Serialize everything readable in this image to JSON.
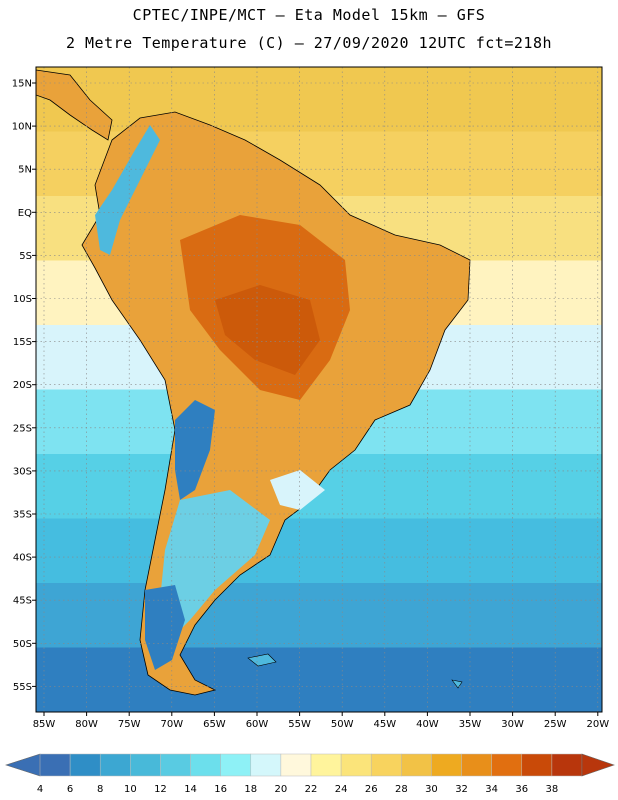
{
  "header": {
    "line1": "CPTEC/INPE/MCT –  Eta Model 15km – GFS",
    "line2": "2 Metre Temperature (C) – 27/09/2020 12UTC fct=218h"
  },
  "map": {
    "lat_labels": [
      "15N",
      "10N",
      "5N",
      "EQ",
      "5S",
      "10S",
      "15S",
      "20S",
      "25S",
      "30S",
      "35S",
      "40S",
      "45S",
      "50S",
      "55S"
    ],
    "lon_labels": [
      "85W",
      "80W",
      "75W",
      "70W",
      "65W",
      "60W",
      "55W",
      "50W",
      "45W",
      "40W",
      "35W",
      "30W",
      "25W",
      "20W"
    ],
    "ocean_bands": [
      {
        "color": "#f0c850"
      },
      {
        "color": "#f5d060"
      },
      {
        "color": "#f8e080"
      },
      {
        "color": "#fff3c0"
      },
      {
        "color": "#d8f4fb"
      },
      {
        "color": "#7ee3f1"
      },
      {
        "color": "#56d0e6"
      },
      {
        "color": "#45bde0"
      },
      {
        "color": "#3ea5d4"
      },
      {
        "color": "#2f7fc0"
      }
    ]
  },
  "legend": {
    "values": [
      "4",
      "6",
      "8",
      "10",
      "12",
      "14",
      "16",
      "18",
      "20",
      "22",
      "24",
      "26",
      "28",
      "30",
      "32",
      "34",
      "36",
      "38"
    ],
    "colors": [
      "#3a6fb4",
      "#2f8ec6",
      "#3ca7d2",
      "#48b9d9",
      "#59cbe2",
      "#6cdfec",
      "#8ef1f6",
      "#d4f7fb",
      "#fff8dc",
      "#fff49c",
      "#fbe47a",
      "#f8d35e",
      "#f2c246",
      "#eeaa20",
      "#e88f1a",
      "#e16f10",
      "#c94a08",
      "#b8360c"
    ]
  }
}
